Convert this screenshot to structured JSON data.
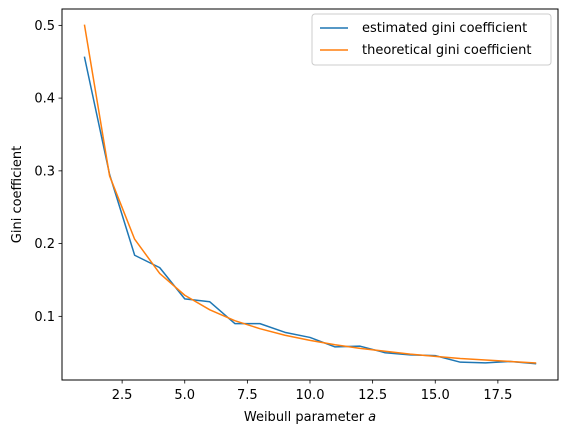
{
  "chart_data": {
    "type": "line",
    "title": "",
    "xlabel": "Weibull parameter a",
    "xlabel_main": "Weibull parameter ",
    "xlabel_italic": "a",
    "ylabel": "Gini coefficient",
    "xlim": [
      0.1,
      19.9
    ],
    "ylim": [
      0.0125,
      0.5225
    ],
    "xticks": [
      2.5,
      5.0,
      7.5,
      10.0,
      12.5,
      15.0,
      17.5
    ],
    "xtick_labels": [
      "2.5",
      "5.0",
      "7.5",
      "10.0",
      "12.5",
      "15.0",
      "17.5"
    ],
    "yticks": [
      0.1,
      0.2,
      0.3,
      0.4,
      0.5
    ],
    "ytick_labels": [
      "0.1",
      "0.2",
      "0.3",
      "0.4",
      "0.5"
    ],
    "grid": false,
    "legend_position": "top-right",
    "x": [
      1,
      2,
      3,
      4,
      5,
      6,
      7,
      8,
      9,
      10,
      11,
      12,
      13,
      14,
      15,
      16,
      17,
      18,
      19
    ],
    "series": [
      {
        "name": "estimated gini coefficient",
        "color": "#1f77b4",
        "values": [
          0.456,
          0.295,
          0.184,
          0.167,
          0.124,
          0.12,
          0.09,
          0.09,
          0.078,
          0.071,
          0.058,
          0.059,
          0.05,
          0.047,
          0.046,
          0.037,
          0.036,
          0.038,
          0.035
        ]
      },
      {
        "name": "theoretical gini coefficient",
        "color": "#ff7f0e",
        "values": [
          0.5,
          0.293,
          0.206,
          0.159,
          0.129,
          0.109,
          0.094,
          0.083,
          0.074,
          0.067,
          0.061,
          0.056,
          0.052,
          0.048,
          0.045,
          0.042,
          0.04,
          0.038,
          0.036
        ]
      }
    ]
  }
}
